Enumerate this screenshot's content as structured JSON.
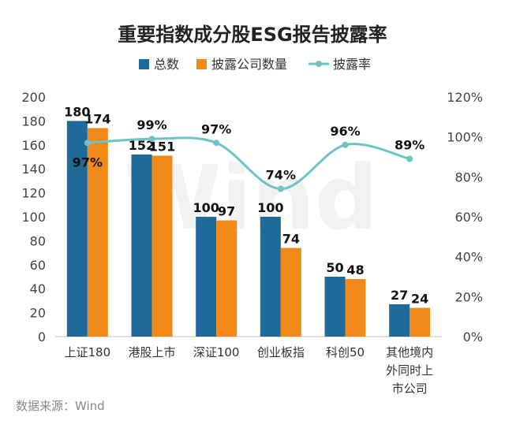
{
  "chart_data": {
    "type": "bar",
    "title": "重要指数成分股ESG报告披露率",
    "categories": [
      [
        "上证180"
      ],
      [
        "港股上市"
      ],
      [
        "深证100"
      ],
      [
        "创业板指"
      ],
      [
        "科创50"
      ],
      [
        "其他境内",
        "外同时上",
        "市公司"
      ]
    ],
    "series": [
      {
        "name": "总数",
        "type": "bar",
        "axis": "left",
        "color": "#1f6a99",
        "values": [
          180,
          152,
          100,
          100,
          50,
          27
        ]
      },
      {
        "name": "披露公司数量",
        "type": "bar",
        "axis": "left",
        "color": "#f28a1a",
        "values": [
          174,
          151,
          97,
          74,
          48,
          24
        ]
      },
      {
        "name": "披露率",
        "type": "line",
        "axis": "right",
        "color": "#6cc4c4",
        "values": [
          97,
          99,
          97,
          74,
          96,
          89
        ]
      }
    ],
    "y_left": {
      "min": 0,
      "max": 200,
      "step": 20
    },
    "y_right": {
      "min": 0,
      "max": 120,
      "step": 20,
      "unit": "%"
    },
    "legend_position": "top",
    "grid": false
  },
  "footer": {
    "source": "数据来源：Wind"
  },
  "watermark": "Wind"
}
